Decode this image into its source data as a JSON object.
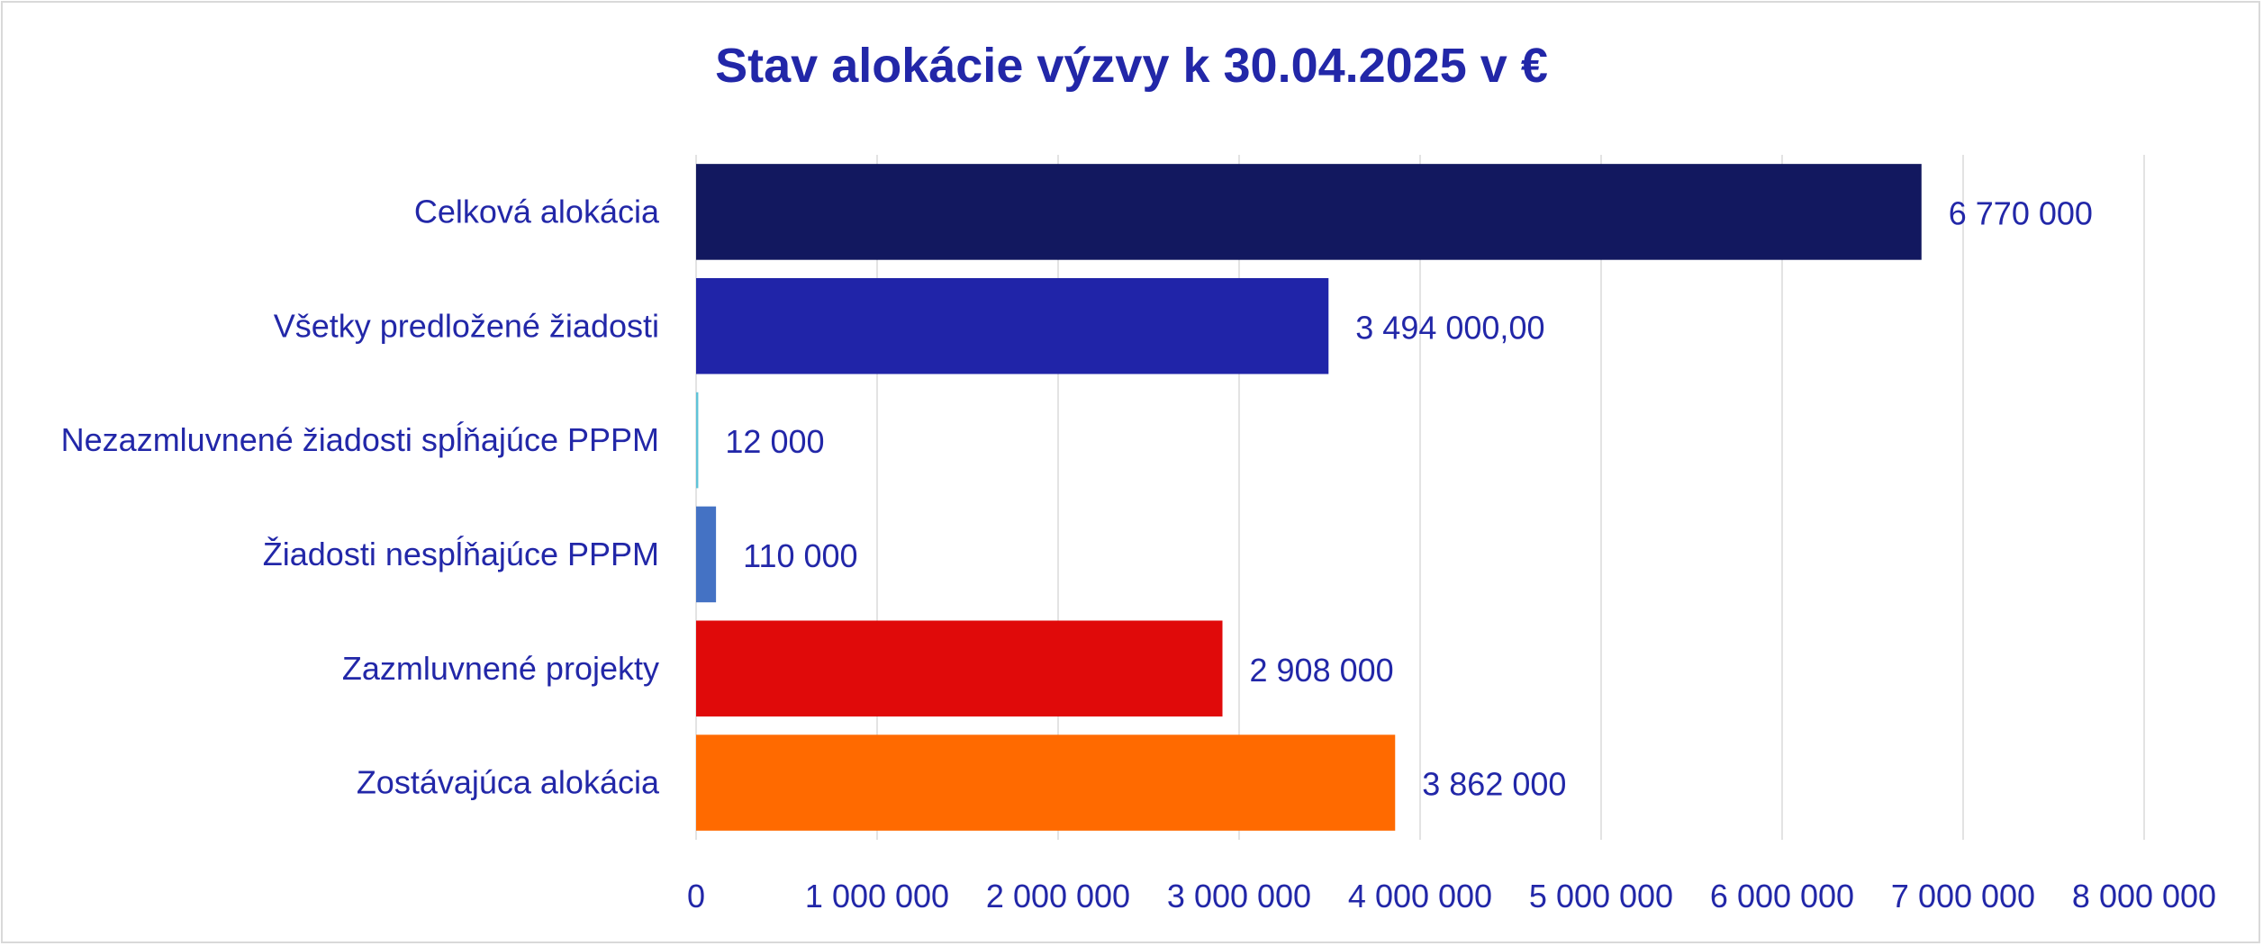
{
  "chart_data": {
    "type": "bar",
    "orientation": "horizontal",
    "title": "Stav alokácie výzvy k 30.04.2025 v €",
    "xlabel": "",
    "ylabel": "",
    "xlim": [
      0,
      8000000
    ],
    "grid": true,
    "legend": "none",
    "categories": [
      "Celková alokácia",
      "Všetky predložené žiadosti",
      "Nezazmluvnené žiadosti spĺňajúce PPPM",
      "Žiadosti nespĺňajúce PPPM",
      "Zazmluvnené projekty",
      "Zostávajúca alokácia"
    ],
    "values": [
      6770000,
      3494000,
      12000,
      110000,
      2908000,
      3862000
    ],
    "data_labels": [
      "6 770 000",
      "3 494 000,00",
      "12 000",
      "110 000",
      "2 908 000",
      "3 862 000"
    ],
    "colors": [
      "#12185f",
      "#2024a8",
      "#5fc3d8",
      "#4472c4",
      "#e00a0a",
      "#ff6a00"
    ],
    "ticks": [
      0,
      1000000,
      2000000,
      3000000,
      4000000,
      5000000,
      6000000,
      7000000,
      8000000
    ],
    "tick_labels": [
      "0",
      "1 000 000",
      "2 000 000",
      "3 000 000",
      "4 000 000",
      "5 000 000",
      "6 000 000",
      "7 000 000",
      "8 000 000"
    ]
  }
}
